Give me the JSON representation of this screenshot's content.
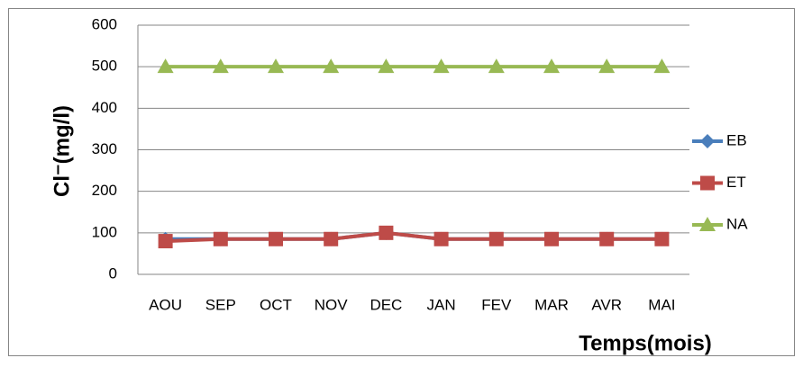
{
  "chart_data": {
    "type": "line",
    "x_label": "Temps(mois)",
    "y_label": "Cl⁻(mg/l)",
    "categories": [
      "AOU",
      "SEP",
      "OCT",
      "NOV",
      "DEC",
      "JAN",
      "FEV",
      "MAR",
      "AVR",
      "MAI"
    ],
    "series": [
      {
        "name": "EB",
        "color": "#4a7ebb",
        "marker": "diamond",
        "values": [
          85,
          85,
          85,
          85,
          100,
          85,
          85,
          85,
          85,
          85
        ]
      },
      {
        "name": "ET",
        "color": "#be4b48",
        "marker": "square",
        "values": [
          80,
          85,
          85,
          85,
          100,
          85,
          85,
          85,
          85,
          85
        ]
      },
      {
        "name": "NA",
        "color": "#98b954",
        "marker": "triangle",
        "values": [
          500,
          500,
          500,
          500,
          500,
          500,
          500,
          500,
          500,
          500
        ]
      }
    ],
    "ylim": [
      0,
      600
    ],
    "yticks": [
      0,
      100,
      200,
      300,
      400,
      500,
      600
    ],
    "grid": true,
    "legend": "right"
  }
}
